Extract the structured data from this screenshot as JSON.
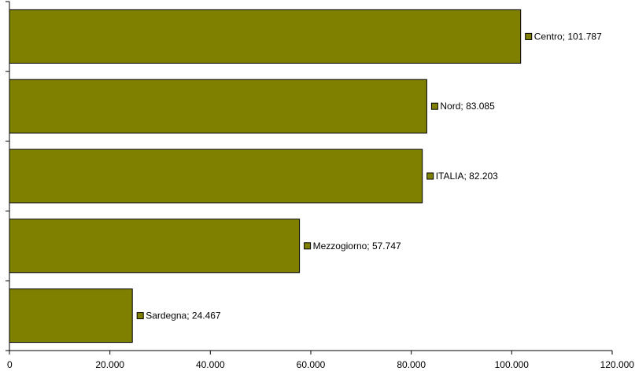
{
  "colors": {
    "bar": "#808000",
    "text": "#000000",
    "background": "#ffffff"
  },
  "chart_data": {
    "type": "bar",
    "orientation": "horizontal",
    "title": "",
    "xlabel": "",
    "ylabel": "",
    "categories": [
      "Centro",
      "Nord",
      "ITALIA",
      "Mezzogiorno",
      "Sardegna"
    ],
    "values": [
      101787,
      83085,
      82203,
      57747,
      24467
    ],
    "data_labels": [
      "Centro; 101.787",
      "Nord; 83.085",
      "ITALIA; 82.203",
      "Mezzogiorno; 57.747",
      "Sardegna; 24.467"
    ],
    "xlim": [
      0,
      120000
    ],
    "x_ticks": [
      0,
      20000,
      40000,
      60000,
      80000,
      100000,
      120000
    ],
    "x_tick_labels": [
      "0",
      "20.000",
      "40.000",
      "60.000",
      "80.000",
      "100.000",
      "120.000"
    ],
    "grid": false,
    "legend": "none"
  }
}
